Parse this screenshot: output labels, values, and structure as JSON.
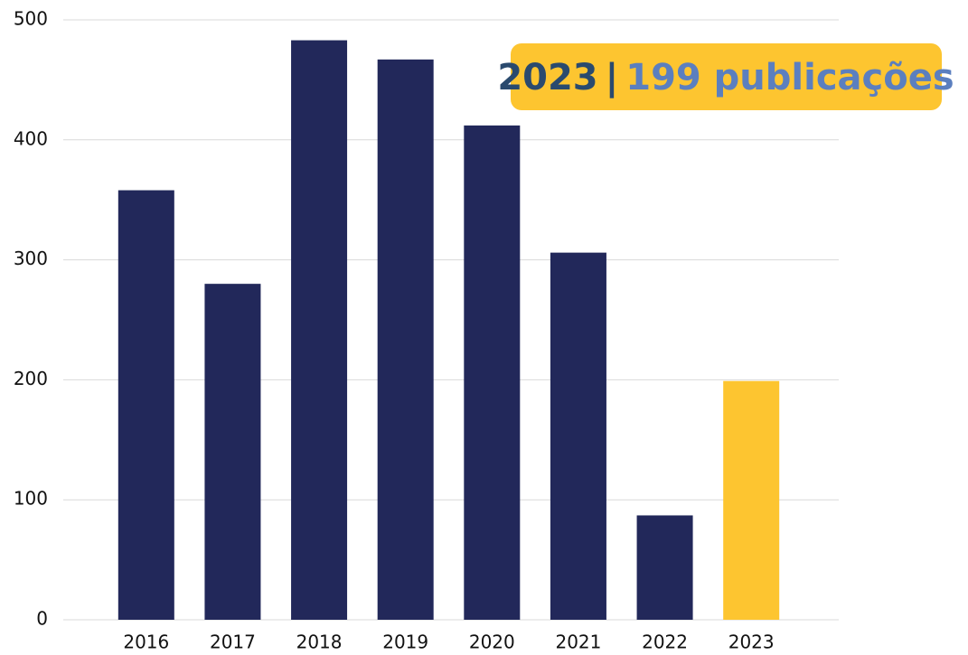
{
  "chart_data": {
    "type": "bar",
    "categories": [
      "2016",
      "2017",
      "2018",
      "2019",
      "2020",
      "2021",
      "2022",
      "2023"
    ],
    "values": [
      358,
      280,
      483,
      467,
      412,
      306,
      87,
      199
    ],
    "colors": [
      "#22285a",
      "#22285a",
      "#22285a",
      "#22285a",
      "#22285a",
      "#22285a",
      "#22285a",
      "#fdc530"
    ],
    "ylim": [
      0,
      500
    ],
    "yticks": [
      0,
      100,
      200,
      300,
      400,
      500
    ],
    "grid": true,
    "annotation": {
      "year": "2023",
      "separator": "|",
      "text": "199 publicações"
    }
  }
}
